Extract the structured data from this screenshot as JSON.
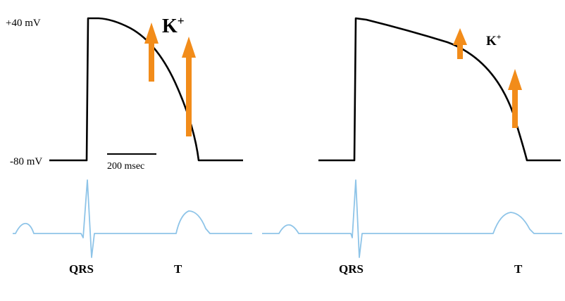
{
  "labels": {
    "v_top": "+40 mV",
    "v_bottom": "-80 mV",
    "scale_bar": "200 msec"
  },
  "left_panel": {
    "ion": "K",
    "ion_charge": "+",
    "ecg_qrs": "QRS",
    "ecg_t": "T"
  },
  "right_panel": {
    "ion": "K",
    "ion_charge": "+",
    "ecg_qrs": "QRS",
    "ecg_t": "T"
  },
  "colors": {
    "action_potential": "#000000",
    "arrows": "#f28c1a",
    "ecg": "#8ec4e8"
  }
}
